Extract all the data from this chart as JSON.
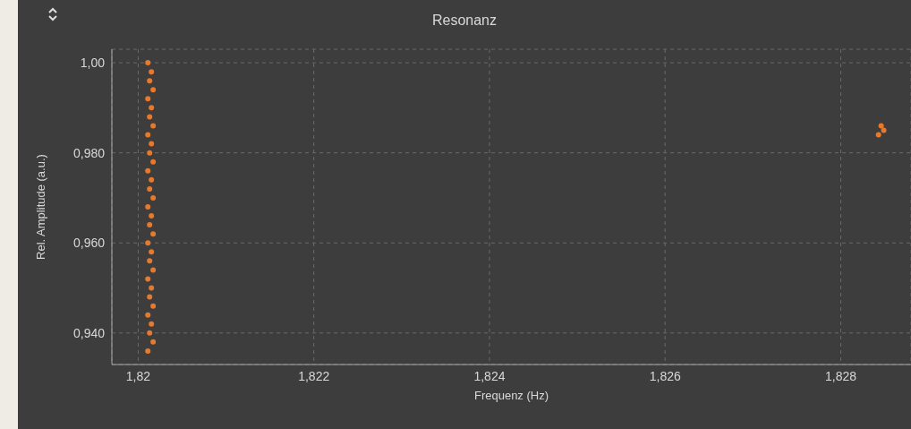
{
  "chart_data": {
    "type": "scatter",
    "title": "Resonanz",
    "xlabel": "Frequenz (Hz)",
    "ylabel": "Rel. Amplitude (a.u.)",
    "xlim": [
      1.8197,
      1.8288
    ],
    "ylim": [
      0.933,
      1.003
    ],
    "xticks": [
      {
        "value": 1.82,
        "label": "1,82"
      },
      {
        "value": 1.822,
        "label": "1,822"
      },
      {
        "value": 1.824,
        "label": "1,824"
      },
      {
        "value": 1.826,
        "label": "1,826"
      },
      {
        "value": 1.828,
        "label": "1,828"
      }
    ],
    "yticks": [
      {
        "value": 0.94,
        "label": "0,940"
      },
      {
        "value": 0.96,
        "label": "0,960"
      },
      {
        "value": 0.98,
        "label": "0,980"
      },
      {
        "value": 1.0,
        "label": "1,00"
      }
    ],
    "grid": true,
    "marker": "circle",
    "series": [
      {
        "color": "#e8782a",
        "x": [
          1.82011,
          1.82017,
          1.82013,
          1.82015,
          1.82011,
          1.82017,
          1.82013,
          1.82015,
          1.82011,
          1.82017,
          1.82013,
          1.82015,
          1.82011,
          1.82017,
          1.82013,
          1.82015,
          1.82011,
          1.82017,
          1.82013,
          1.82015,
          1.82011,
          1.82017,
          1.82013,
          1.82015,
          1.82011,
          1.82017,
          1.82013,
          1.82015,
          1.82011,
          1.82017,
          1.82013,
          1.82015,
          1.82011,
          1.82843,
          1.82849,
          1.82846
        ],
        "values": [
          0.936,
          0.938,
          0.94,
          0.942,
          0.944,
          0.946,
          0.948,
          0.95,
          0.952,
          0.954,
          0.956,
          0.958,
          0.96,
          0.962,
          0.964,
          0.966,
          0.968,
          0.97,
          0.972,
          0.974,
          0.976,
          0.978,
          0.98,
          0.982,
          0.984,
          0.986,
          0.988,
          0.99,
          0.992,
          0.994,
          0.996,
          0.998,
          1.0,
          0.984,
          0.985,
          0.986
        ]
      }
    ]
  }
}
